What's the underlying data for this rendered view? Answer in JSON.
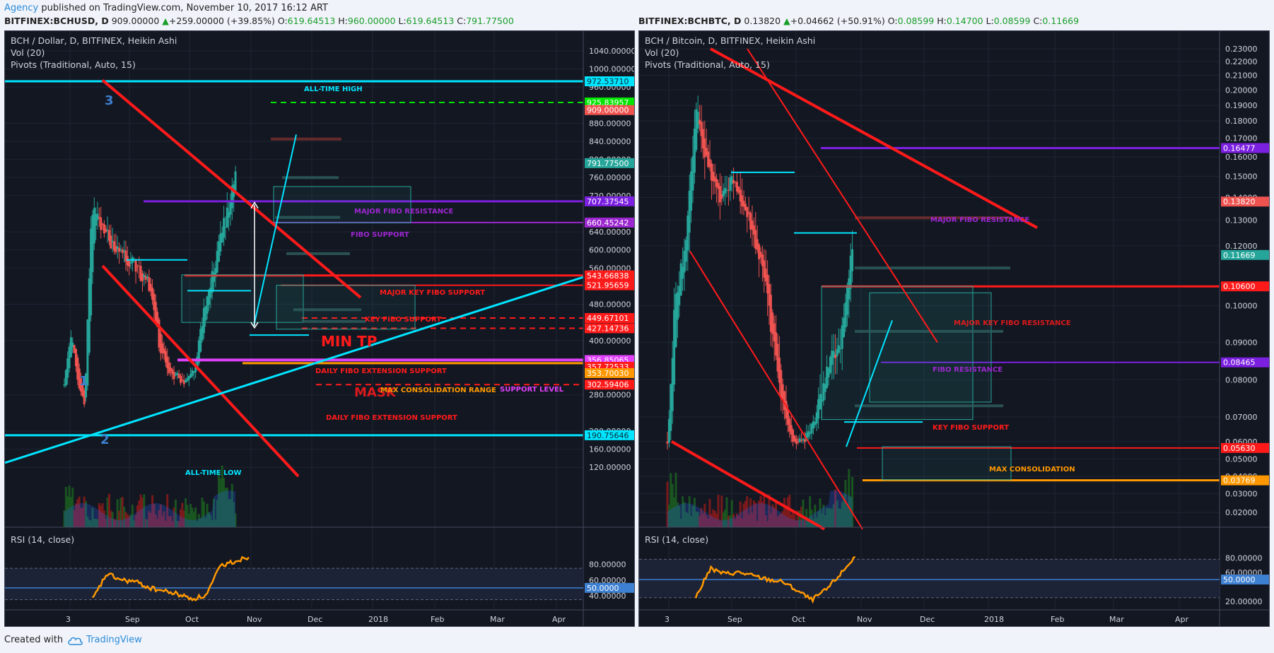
{
  "header": {
    "author": "Agency",
    "published": " published on TradingView.com, November 10, 2017 16:12 ART"
  },
  "footer": {
    "created_with": "Created with",
    "brand": "TradingView"
  },
  "charts": [
    {
      "symbol": "BITFINEX:BCHUSD, D",
      "last": "909.00000",
      "change": "+259.00000 (+39.85%)",
      "o_label": "O:",
      "o": "619.64513",
      "h_label": "H:",
      "h": "960.00000",
      "l_label": "L:",
      "l": "619.64513",
      "c_label": "C:",
      "c": "791.77500",
      "legend_title": "BCH / Dollar, D, BITFINEX, Heikin Ashi",
      "legend_vol": "Vol (20)",
      "legend_pivots": "Pivots (Traditional, Auto, 15)",
      "rsi_label": "RSI (14, close)",
      "price_ticks": [
        {
          "v": "1040.00000",
          "y": 1040
        },
        {
          "v": "1000.00000",
          "y": 1000
        },
        {
          "v": "960.00000",
          "y": 960
        },
        {
          "v": "880.00000",
          "y": 880
        },
        {
          "v": "840.00000",
          "y": 840
        },
        {
          "v": "800.00000",
          "y": 800
        },
        {
          "v": "760.00000",
          "y": 760
        },
        {
          "v": "720.00000",
          "y": 720
        },
        {
          "v": "640.00000",
          "y": 640
        },
        {
          "v": "600.00000",
          "y": 600
        },
        {
          "v": "560.00000",
          "y": 560
        },
        {
          "v": "480.00000",
          "y": 480
        },
        {
          "v": "400.00000",
          "y": 400
        },
        {
          "v": "280.00000",
          "y": 280
        },
        {
          "v": "200.00000",
          "y": 200
        },
        {
          "v": "160.00000",
          "y": 160
        },
        {
          "v": "120.00000",
          "y": 120
        }
      ],
      "price_badges": [
        {
          "v": "972.53710",
          "y": 972.5,
          "color": "#00e5ff",
          "text": "#0b2a33"
        },
        {
          "v": "925.83957",
          "y": 925.8,
          "color": "#00e600",
          "text": "#ffffff"
        },
        {
          "v": "909.00000",
          "y": 909,
          "color": "#ef5350",
          "text": "#ffffff"
        },
        {
          "v": "791.77500",
          "y": 791.8,
          "color": "#26a69a",
          "text": "#ffffff"
        },
        {
          "v": "707.37545",
          "y": 707.4,
          "color": "#7b1fe0",
          "text": "#ffffff"
        },
        {
          "v": "660.45242",
          "y": 660.5,
          "color": "#9c27d0",
          "text": "#ffffff"
        },
        {
          "v": "543.66838",
          "y": 543.7,
          "color": "#ff1a1a",
          "text": "#ffffff"
        },
        {
          "v": "521.95659",
          "y": 522,
          "color": "#ff1a1a",
          "text": "#ffffff"
        },
        {
          "v": "449.67101",
          "y": 449.7,
          "color": "#ff1a1a",
          "text": "#ffffff"
        },
        {
          "v": "427.14736",
          "y": 427.1,
          "color": "#ff1a1a",
          "text": "#ffffff"
        },
        {
          "v": "356.85065",
          "y": 356.9,
          "color": "#e040fb",
          "text": "#ffffff"
        },
        {
          "v": "357.72533",
          "y": 342,
          "color": "#ff1a1a",
          "text": "#ffffff"
        },
        {
          "v": "353.70030",
          "y": 328,
          "color": "#ff9800",
          "text": "#ffffff"
        },
        {
          "v": "302.59406",
          "y": 302.6,
          "color": "#ff1a1a",
          "text": "#ffffff"
        },
        {
          "v": "190.75646",
          "y": 190.8,
          "color": "#00e5ff",
          "text": "#0b2a33"
        }
      ],
      "rsi_ticks": [
        {
          "v": "80.00000",
          "y": 80
        },
        {
          "v": "60.00000",
          "y": 60
        },
        {
          "v": "40.00000",
          "y": 40
        }
      ],
      "rsi_badge": "50.0000",
      "date_ticks": [
        "3",
        "Sep",
        "Oct",
        "Nov",
        "Dec",
        "2018",
        "Feb",
        "Mar",
        "Apr"
      ],
      "annotations": {
        "ath": "ALL-TIME HIGH",
        "atl": "ALL-TIME LOW",
        "major_fibo_res": "MAJOR FIBO RESISTANCE",
        "fibo_support": "FIBO SUPPORT",
        "major_key_fibo_support": "MAJOR KEY FIBO SUPPORT",
        "key_fibo_support": "KEY FIBO SUPPORT",
        "min_tp": "MIN TP",
        "daily_fibo_ext_1": "DAILY FIBO EXTENSION SUPPORT",
        "max_consolidation": "MAX CONSOLIDATION RANGE",
        "support_level": "SUPPORT LEVEL",
        "daily_fibo_ext_2": "DAILY FIBO EXTENSION SUPPORT",
        "wave_1": "1",
        "wave_2": "2",
        "wave_3": "3",
        "mask": "MASK"
      }
    },
    {
      "symbol": "BITFINEX:BCHBTC, D",
      "last": "0.13820",
      "change": "+0.04662 (+50.91%)",
      "o_label": "O:",
      "o": "0.08599",
      "h_label": "H:",
      "h": "0.14700",
      "l_label": "L:",
      "l": "0.08599",
      "c_label": "C:",
      "c": "0.11669",
      "legend_title": "BCH / Bitcoin, D, BITFINEX, Heikin Ashi",
      "legend_vol": "Vol (20)",
      "legend_pivots": "Pivots (Traditional, Auto, 15)",
      "rsi_label": "RSI (14, close)",
      "price_ticks": [
        {
          "v": "0.23000",
          "y": 0.23
        },
        {
          "v": "0.22000",
          "y": 0.22
        },
        {
          "v": "0.21000",
          "y": 0.21
        },
        {
          "v": "0.20000",
          "y": 0.2
        },
        {
          "v": "0.19000",
          "y": 0.19
        },
        {
          "v": "0.18000",
          "y": 0.18
        },
        {
          "v": "0.17000",
          "y": 0.17
        },
        {
          "v": "0.16000",
          "y": 0.16
        },
        {
          "v": "0.15000",
          "y": 0.15
        },
        {
          "v": "0.14000",
          "y": 0.14
        },
        {
          "v": "0.13000",
          "y": 0.13
        },
        {
          "v": "0.12000",
          "y": 0.12
        },
        {
          "v": "0.10000",
          "y": 0.1
        },
        {
          "v": "0.09000",
          "y": 0.09
        },
        {
          "v": "0.08000",
          "y": 0.08
        },
        {
          "v": "0.07000",
          "y": 0.07
        },
        {
          "v": "0.06000",
          "y": 0.06
        },
        {
          "v": "0.05000",
          "y": 0.05
        },
        {
          "v": "0.04000",
          "y": 0.04
        },
        {
          "v": "0.03000",
          "y": 0.03
        },
        {
          "v": "0.02000",
          "y": 0.02
        }
      ],
      "price_badges": [
        {
          "v": "0.16477",
          "y": 0.16477,
          "color": "#7b1fe0",
          "text": "#ffffff"
        },
        {
          "v": "0.13820",
          "y": 0.1382,
          "color": "#ef5350",
          "text": "#ffffff"
        },
        {
          "v": "0.11669",
          "y": 0.11669,
          "color": "#26a69a",
          "text": "#ffffff"
        },
        {
          "v": "0.10600",
          "y": 0.106,
          "color": "#ff1a1a",
          "text": "#ffffff"
        },
        {
          "v": "0.08465",
          "y": 0.08465,
          "color": "#7b1fe0",
          "text": "#ffffff"
        },
        {
          "v": "0.05630",
          "y": 0.0563,
          "color": "#ff1a1a",
          "text": "#ffffff"
        },
        {
          "v": "0.03769",
          "y": 0.03769,
          "color": "#ff9800",
          "text": "#ffffff"
        }
      ],
      "rsi_ticks": [
        {
          "v": "80.00000",
          "y": 80
        },
        {
          "v": "60.00000",
          "y": 60
        },
        {
          "v": "20.00000",
          "y": 20
        }
      ],
      "rsi_badge": "50.0000",
      "date_ticks": [
        "3",
        "Sep",
        "Oct",
        "Nov",
        "Dec",
        "2018",
        "Feb",
        "Mar",
        "Apr"
      ],
      "annotations": {
        "major_fibo_res": "MAJOR FIBO RESISTANCE",
        "major_key_fibo_res": "MAJOR KEY FIBO RESISTANCE",
        "fibo_resistance": "FIBO RESISTANCE",
        "key_fibo_support": "KEY FIBO SUPPORT",
        "max_consolidation": "MAX CONSOLIDATION"
      }
    }
  ],
  "chart_data": [
    {
      "type": "candlestick",
      "title": "BCH / Dollar, D, BITFINEX, Heikin Ashi",
      "ylim": [
        100,
        1060
      ],
      "x": [
        "Aug 1",
        "Aug 3",
        "Aug 10",
        "Aug 20",
        "Sep 1",
        "Sep 15",
        "Oct 1",
        "Oct 10",
        "Oct 20",
        "Nov 1",
        "Nov 5",
        "Nov 10"
      ],
      "close": [
        300,
        420,
        300,
        720,
        640,
        560,
        440,
        330,
        310,
        430,
        640,
        791.775
      ],
      "rsi": {
        "ylim": [
          30,
          95
        ],
        "values": [
          35,
          68,
          60,
          58,
          50,
          46,
          42,
          36,
          40,
          78,
          84,
          90
        ],
        "mid": 50
      },
      "levels": [
        {
          "name": "ALL-TIME HIGH",
          "value": 972.5371
        },
        {
          "name": "MAJOR FIBO RESISTANCE",
          "value": 707.37545
        },
        {
          "name": "FIBO SUPPORT",
          "value": 660.45242
        },
        {
          "name": "MAJOR KEY FIBO SUPPORT",
          "value": 543.66838
        },
        {
          "name": "KEY FIBO SUPPORT",
          "value": 521.95659
        },
        {
          "name": "MIN TP",
          "value": 449.67101
        },
        {
          "name": "DAILY FIBO EXTENSION SUPPORT",
          "value": 427.14736
        },
        {
          "name": "MAX CONSOLIDATION RANGE",
          "value": 356.85065
        },
        {
          "name": "DAILY FIBO EXTENSION SUPPORT",
          "value": 302.59406
        },
        {
          "name": "ALL-TIME LOW",
          "value": 190.75646
        }
      ]
    },
    {
      "type": "candlestick",
      "title": "BCH / Bitcoin, D, BITFINEX, Heikin Ashi",
      "ylim": [
        0.012,
        0.24
      ],
      "x": [
        "Aug 1",
        "Aug 3",
        "Aug 10",
        "Aug 20",
        "Sep 1",
        "Sep 15",
        "Oct 1",
        "Oct 10",
        "Oct 20",
        "Nov 1",
        "Nov 5",
        "Nov 10"
      ],
      "close": [
        0.06,
        0.1,
        0.11,
        0.18,
        0.15,
        0.13,
        0.11,
        0.065,
        0.06,
        0.075,
        0.09,
        0.11669
      ],
      "rsi": {
        "ylim": [
          15,
          90
        ],
        "values": [
          25,
          65,
          58,
          60,
          55,
          50,
          47,
          35,
          22,
          36,
          58,
          82
        ],
        "mid": 50
      },
      "levels": [
        {
          "name": "MAJOR FIBO RESISTANCE",
          "value": 0.16477
        },
        {
          "name": "MAJOR KEY FIBO RESISTANCE",
          "value": 0.106
        },
        {
          "name": "FIBO RESISTANCE",
          "value": 0.08465
        },
        {
          "name": "KEY FIBO SUPPORT",
          "value": 0.0563
        },
        {
          "name": "MAX CONSOLIDATION",
          "value": 0.03769
        }
      ]
    }
  ]
}
